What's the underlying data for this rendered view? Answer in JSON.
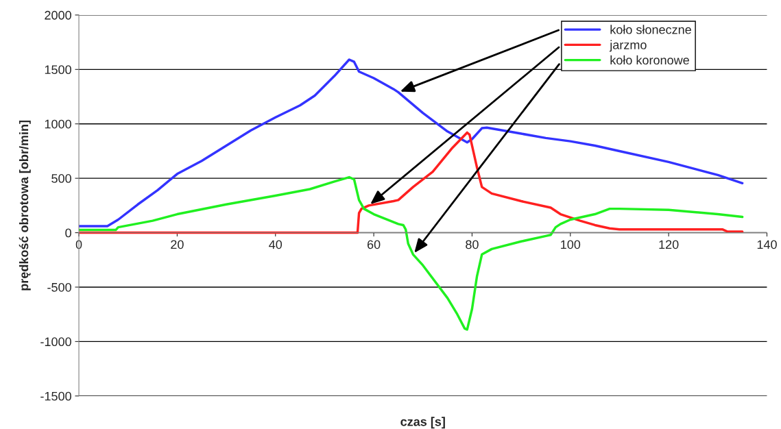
{
  "chart_data": {
    "type": "line",
    "xlabel": "czas [s]",
    "ylabel": "prędkość obrotowa [obr/min]",
    "xlim": [
      0,
      140
    ],
    "xticks": [
      0,
      20,
      40,
      60,
      80,
      100,
      120,
      140
    ],
    "ylim": [
      -1500,
      2000
    ],
    "yticks": [
      -1500,
      -1000,
      -500,
      0,
      500,
      1000,
      1500,
      2000
    ],
    "grid": "y",
    "legend": "top right",
    "marker": "none",
    "line_style": "solid",
    "series": [
      {
        "name": "koło słoneczne",
        "color": "#3333ff",
        "x": [
          0,
          5.8,
          8,
          12,
          16,
          20,
          25,
          30,
          35,
          40,
          45,
          48,
          52,
          55,
          56,
          57,
          60,
          64,
          65,
          70,
          75,
          79,
          80,
          82,
          83,
          90,
          95,
          100,
          105,
          110,
          120,
          130,
          135
        ],
        "values": [
          60,
          60,
          120,
          260,
          390,
          540,
          660,
          800,
          940,
          1060,
          1170,
          1260,
          1440,
          1590,
          1570,
          1480,
          1420,
          1320,
          1290,
          1100,
          930,
          830,
          860,
          960,
          965,
          910,
          870,
          840,
          800,
          750,
          650,
          530,
          455
        ]
      },
      {
        "name": "jarzmo",
        "color": "#ff2020",
        "x": [
          0,
          56.7,
          57,
          57.5,
          59,
          64,
          65,
          68,
          72,
          76,
          79,
          79.5,
          81,
          82,
          84,
          90,
          96,
          98,
          102,
          105,
          108,
          110,
          131,
          132,
          135
        ],
        "values": [
          0,
          0,
          180,
          220,
          250,
          290,
          300,
          420,
          560,
          780,
          920,
          900,
          600,
          420,
          360,
          290,
          230,
          170,
          110,
          70,
          40,
          30,
          30,
          10,
          10
        ]
      },
      {
        "name": "koło koronowe",
        "color": "#20f020",
        "x": [
          0,
          7.5,
          8,
          15,
          20,
          30,
          40,
          47,
          52,
          55,
          56,
          57,
          58,
          60,
          65,
          66,
          66.5,
          67,
          68,
          70,
          75,
          77,
          78.5,
          79,
          80,
          81,
          82,
          84,
          90,
          95,
          96,
          97,
          98,
          100,
          105,
          108,
          110,
          120,
          130,
          135
        ],
        "values": [
          25,
          25,
          50,
          110,
          170,
          260,
          340,
          400,
          470,
          510,
          490,
          300,
          220,
          170,
          80,
          70,
          30,
          -100,
          -200,
          -300,
          -600,
          -750,
          -880,
          -890,
          -700,
          -400,
          -200,
          -150,
          -80,
          -30,
          -20,
          50,
          80,
          120,
          170,
          220,
          220,
          210,
          170,
          145
        ]
      }
    ]
  }
}
